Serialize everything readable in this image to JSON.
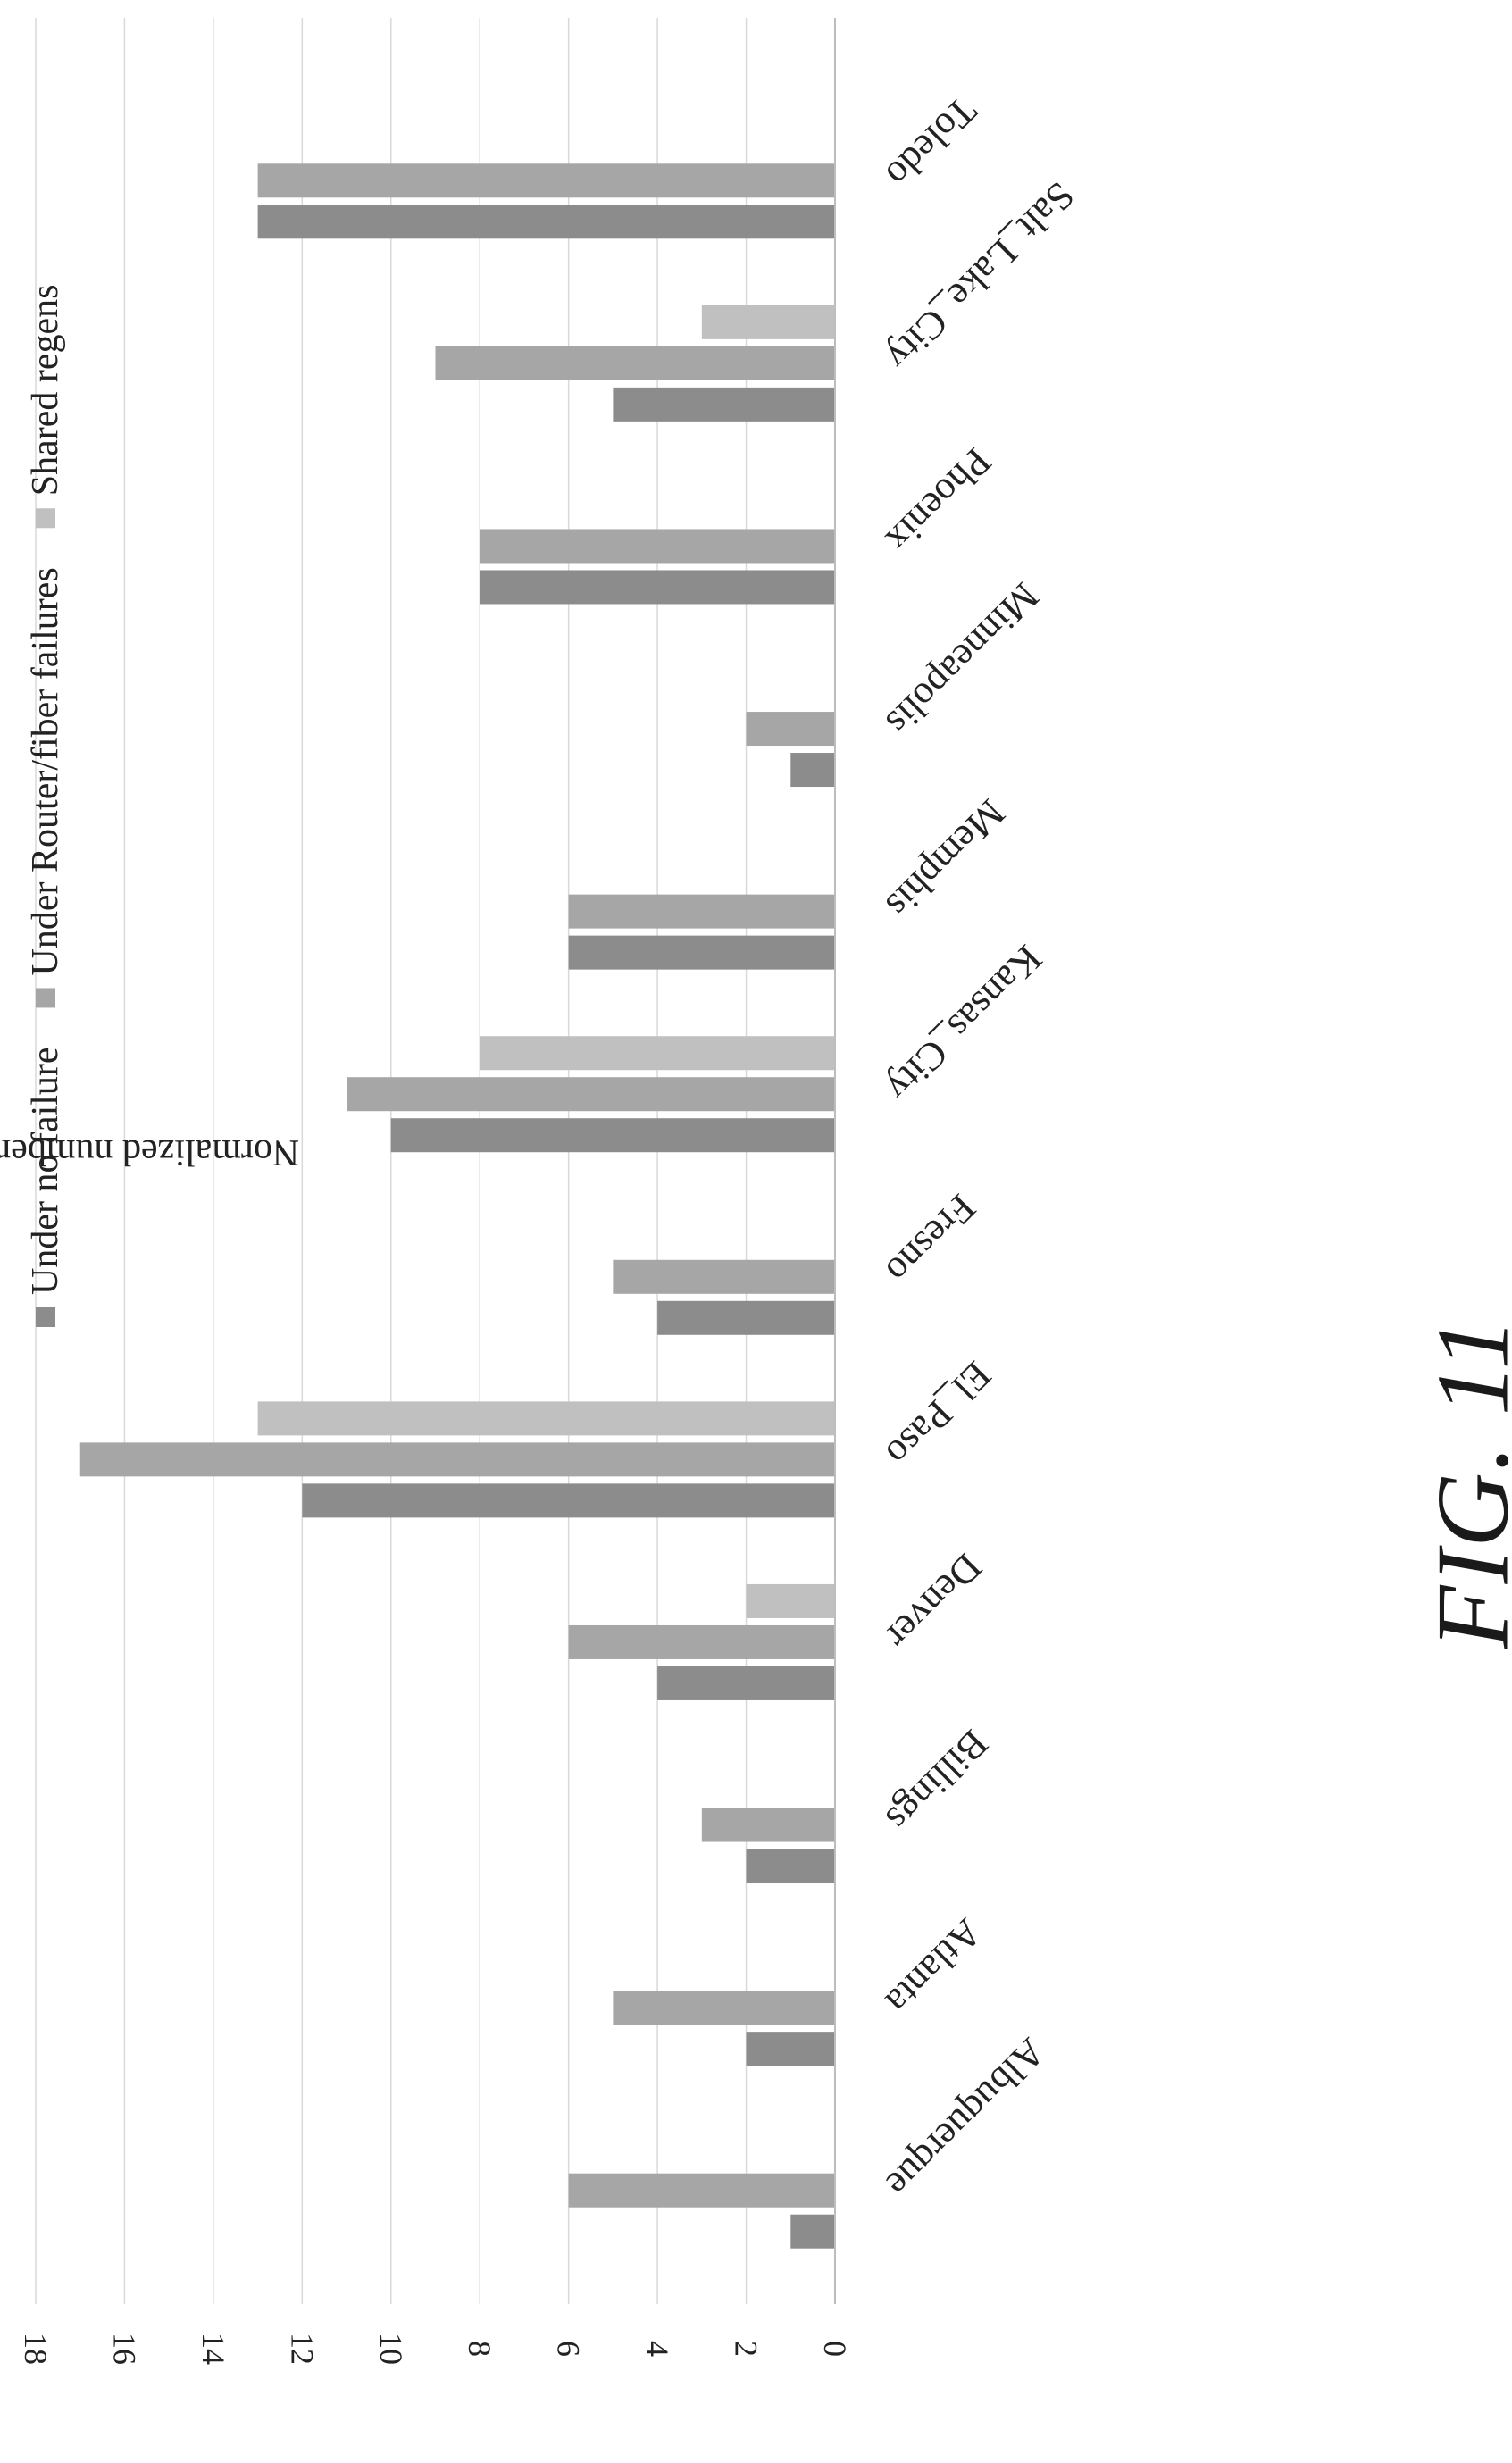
{
  "figure_label": "FIG. 11",
  "chart_data": {
    "type": "bar",
    "orientation": "horizontal, page rotated 90 degrees",
    "title": "",
    "ylabel": "Normalized number of regenerators",
    "xlabel": "",
    "ylim": [
      0,
      18
    ],
    "yticks": [
      "0",
      "2",
      "4",
      "6",
      "8",
      "10",
      "12",
      "14",
      "16",
      "18"
    ],
    "grid": true,
    "legend_position": "top",
    "categories": [
      "Albuquerque",
      "Atlanta",
      "Billings",
      "Denver",
      "El_Paso",
      "Fresno",
      "Kansas_City",
      "Memphis",
      "Minneapolis",
      "Phoenix",
      "Salt_Lake_City",
      "Toledo"
    ],
    "series": [
      {
        "name": "Under no failure",
        "color": "#8c8c8c",
        "values": [
          1,
          2,
          2,
          4,
          12,
          4,
          10,
          6,
          1,
          8,
          5,
          13
        ]
      },
      {
        "name": "Under Router/fiber failures",
        "color": "#a6a6a6",
        "values": [
          6,
          5,
          3,
          6,
          17,
          5,
          11,
          6,
          2,
          8,
          9,
          13
        ]
      },
      {
        "name": "Shared regens",
        "color": "#c0c0c0",
        "values": [
          0,
          0,
          0,
          2,
          13,
          0,
          8,
          0,
          0,
          0,
          3,
          0
        ]
      }
    ]
  }
}
